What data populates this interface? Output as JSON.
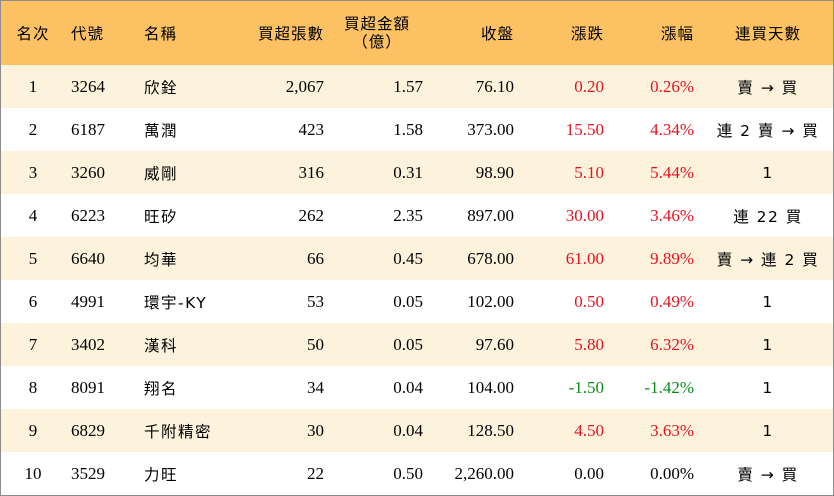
{
  "columns": {
    "rank": "名次",
    "code": "代號",
    "name": "名稱",
    "net_buy_lots": "買超張數",
    "net_buy_amount_line1": "買超金額",
    "net_buy_amount_line2": "（億）",
    "close": "收盤",
    "change": "漲跌",
    "change_pct": "漲幅",
    "consecutive_days": "連買天數"
  },
  "colors": {
    "header_bg": "#fbc163",
    "odd_row_bg": "#fdf2dc",
    "up": "#e8121f",
    "down": "#0c8a1c"
  },
  "rows": [
    {
      "rank": "1",
      "code": "3264",
      "name": "欣銓",
      "lots": "2,067",
      "amount": "1.57",
      "close": "76.10",
      "change": "0.20",
      "pct": "0.26%",
      "days": "賣 → 買",
      "trend": "red"
    },
    {
      "rank": "2",
      "code": "6187",
      "name": "萬潤",
      "lots": "423",
      "amount": "1.58",
      "close": "373.00",
      "change": "15.50",
      "pct": "4.34%",
      "days": "連 2 賣 → 買",
      "trend": "red"
    },
    {
      "rank": "3",
      "code": "3260",
      "name": "威剛",
      "lots": "316",
      "amount": "0.31",
      "close": "98.90",
      "change": "5.10",
      "pct": "5.44%",
      "days": "1",
      "trend": "red"
    },
    {
      "rank": "4",
      "code": "6223",
      "name": "旺矽",
      "lots": "262",
      "amount": "2.35",
      "close": "897.00",
      "change": "30.00",
      "pct": "3.46%",
      "days": "連 22 買",
      "trend": "red"
    },
    {
      "rank": "5",
      "code": "6640",
      "name": "均華",
      "lots": "66",
      "amount": "0.45",
      "close": "678.00",
      "change": "61.00",
      "pct": "9.89%",
      "days": "賣 → 連 2 買",
      "trend": "red"
    },
    {
      "rank": "6",
      "code": "4991",
      "name": "環宇-KY",
      "lots": "53",
      "amount": "0.05",
      "close": "102.00",
      "change": "0.50",
      "pct": "0.49%",
      "days": "1",
      "trend": "red"
    },
    {
      "rank": "7",
      "code": "3402",
      "name": "漢科",
      "lots": "50",
      "amount": "0.05",
      "close": "97.60",
      "change": "5.80",
      "pct": "6.32%",
      "days": "1",
      "trend": "red"
    },
    {
      "rank": "8",
      "code": "8091",
      "name": "翔名",
      "lots": "34",
      "amount": "0.04",
      "close": "104.00",
      "change": "-1.50",
      "pct": "-1.42%",
      "days": "1",
      "trend": "green"
    },
    {
      "rank": "9",
      "code": "6829",
      "name": "千附精密",
      "lots": "30",
      "amount": "0.04",
      "close": "128.50",
      "change": "4.50",
      "pct": "3.63%",
      "days": "1",
      "trend": "red"
    },
    {
      "rank": "10",
      "code": "3529",
      "name": "力旺",
      "lots": "22",
      "amount": "0.50",
      "close": "2,260.00",
      "change": "0.00",
      "pct": "0.00%",
      "days": "賣 → 買",
      "trend": "black"
    }
  ]
}
